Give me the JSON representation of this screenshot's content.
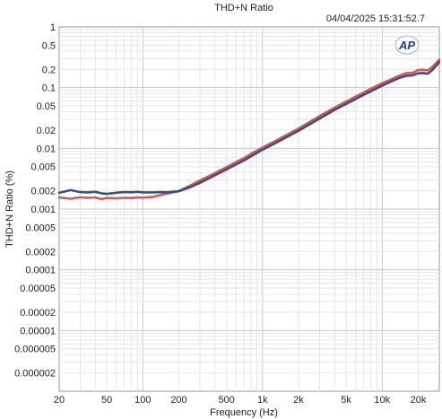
{
  "chart_data": {
    "type": "line",
    "title": "THD+N Ratio",
    "timestamp": "04/04/2025 15:31:52.7",
    "logo_text": "AP",
    "xlabel": "Frequency (Hz)",
    "ylabel": "THD+N Ratio (%)",
    "x_scale": "log",
    "y_scale": "log",
    "xlim": [
      20,
      30000
    ],
    "ylim": [
      1e-06,
      1
    ],
    "grid": true,
    "legend": "none",
    "x_ticks": [
      {
        "value": 20,
        "label": "20"
      },
      {
        "value": 50,
        "label": "50"
      },
      {
        "value": 100,
        "label": "100"
      },
      {
        "value": 200,
        "label": "200"
      },
      {
        "value": 500,
        "label": "500"
      },
      {
        "value": 1000,
        "label": "1k"
      },
      {
        "value": 2000,
        "label": "2k"
      },
      {
        "value": 5000,
        "label": "5k"
      },
      {
        "value": 10000,
        "label": "10k"
      },
      {
        "value": 20000,
        "label": "20k"
      }
    ],
    "y_ticks": [
      {
        "value": 1,
        "label": "1"
      },
      {
        "value": 0.5,
        "label": "0.5"
      },
      {
        "value": 0.2,
        "label": "0.2"
      },
      {
        "value": 0.1,
        "label": "0.1"
      },
      {
        "value": 0.05,
        "label": "0.05"
      },
      {
        "value": 0.02,
        "label": "0.02"
      },
      {
        "value": 0.01,
        "label": "0.01"
      },
      {
        "value": 0.005,
        "label": "0.005"
      },
      {
        "value": 0.002,
        "label": "0.002"
      },
      {
        "value": 0.001,
        "label": "0.001"
      },
      {
        "value": 0.0005,
        "label": "0.0005"
      },
      {
        "value": 0.0002,
        "label": "0.0002"
      },
      {
        "value": 0.0001,
        "label": "0.0001"
      },
      {
        "value": 5e-05,
        "label": "0.00005"
      },
      {
        "value": 2e-05,
        "label": "0.00002"
      },
      {
        "value": 1e-05,
        "label": "0.00001"
      },
      {
        "value": 5e-06,
        "label": "0.000005"
      },
      {
        "value": 2e-06,
        "label": "0.000002"
      }
    ],
    "series": [
      {
        "color": "#d05a5a",
        "x": [
          20,
          25,
          30,
          35,
          40,
          45,
          50,
          60,
          70,
          80,
          90,
          100,
          120,
          140,
          160,
          180,
          200,
          250,
          300,
          400,
          500,
          600,
          700,
          800,
          1000,
          1200,
          1500,
          2000,
          3000,
          4000,
          5000,
          6000,
          7000,
          8000,
          10000,
          12000,
          14000,
          16000,
          18000,
          20000,
          22000,
          24000,
          26000,
          28000,
          30000
        ],
        "y": [
          0.00155,
          0.00148,
          0.00156,
          0.00153,
          0.00155,
          0.00146,
          0.00152,
          0.0015,
          0.00153,
          0.00152,
          0.00155,
          0.00154,
          0.00158,
          0.0017,
          0.0018,
          0.00188,
          0.00198,
          0.00245,
          0.00295,
          0.0039,
          0.0049,
          0.0059,
          0.0069,
          0.0081,
          0.0103,
          0.0124,
          0.0157,
          0.0212,
          0.034,
          0.047,
          0.059,
          0.071,
          0.083,
          0.096,
          0.118,
          0.138,
          0.158,
          0.174,
          0.176,
          0.195,
          0.197,
          0.193,
          0.215,
          0.25,
          0.29
        ]
      },
      {
        "color": "#3a4f86",
        "x": [
          20,
          25,
          30,
          35,
          40,
          45,
          50,
          60,
          70,
          80,
          90,
          100,
          120,
          140,
          160,
          180,
          200,
          250,
          300,
          400,
          500,
          600,
          700,
          800,
          1000,
          1200,
          1500,
          2000,
          3000,
          4000,
          5000,
          6000,
          7000,
          8000,
          10000,
          12000,
          14000,
          16000,
          18000,
          20000,
          22000,
          24000,
          26000,
          28000,
          30000
        ],
        "y": [
          0.00185,
          0.00205,
          0.0019,
          0.00188,
          0.00192,
          0.00182,
          0.00178,
          0.00186,
          0.0019,
          0.00189,
          0.00192,
          0.00188,
          0.00188,
          0.0019,
          0.00189,
          0.00193,
          0.00196,
          0.0023,
          0.0027,
          0.0036,
          0.0045,
          0.0054,
          0.0063,
          0.0074,
          0.0095,
          0.0114,
          0.0144,
          0.0195,
          0.031,
          0.043,
          0.054,
          0.065,
          0.076,
          0.087,
          0.108,
          0.127,
          0.145,
          0.157,
          0.16,
          0.172,
          0.174,
          0.17,
          0.192,
          0.225,
          0.265
        ]
      }
    ]
  }
}
